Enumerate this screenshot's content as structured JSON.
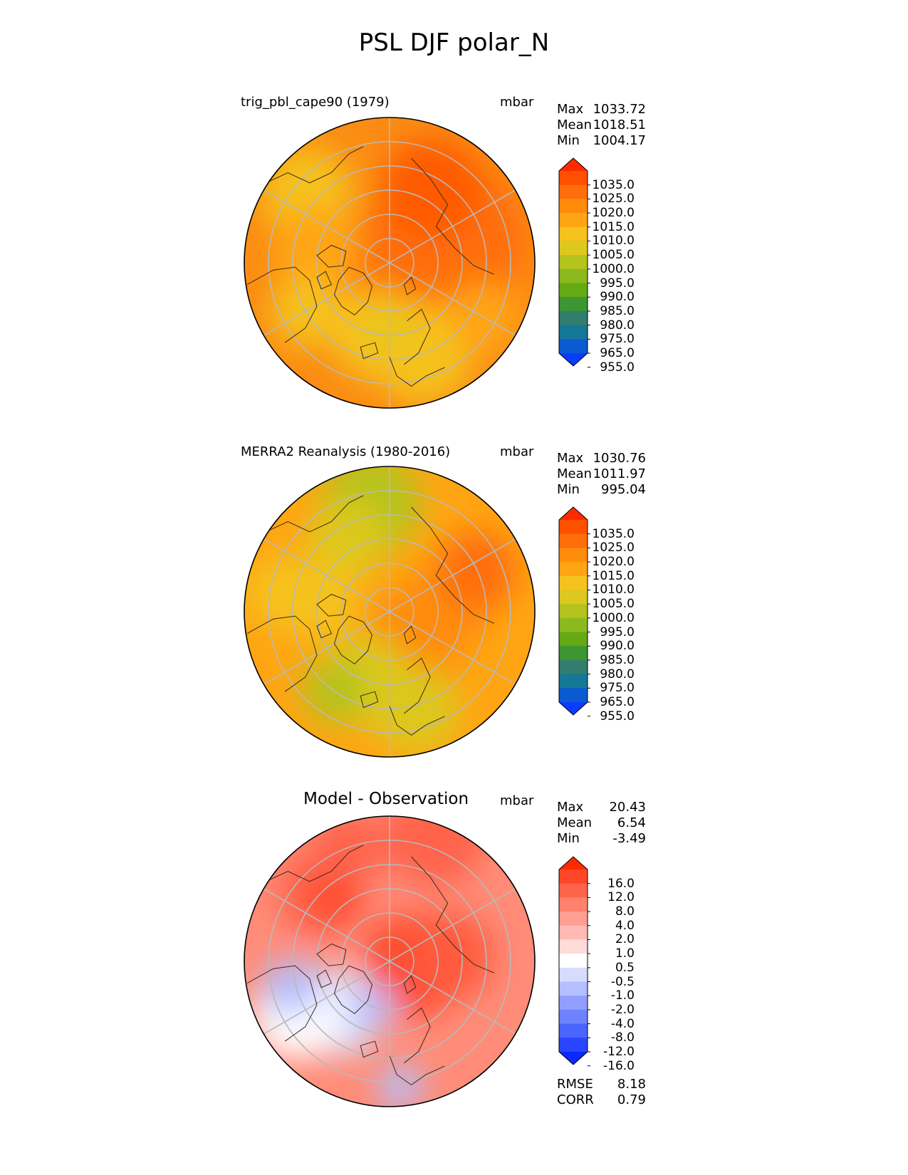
{
  "chart_data": {
    "type": "heatmap",
    "title": "PSL DJF polar_N",
    "panels": [
      {
        "id": "test",
        "title": "trig_pbl_cape90 (1979)",
        "units": "mbar",
        "stats": [
          {
            "label": "Max",
            "value": "1033.72"
          },
          {
            "label": "Mean",
            "value": "1018.51"
          },
          {
            "label": "Min",
            "value": "1004.17"
          }
        ],
        "colorbar": {
          "levels": [
            "1035.0",
            "1025.0",
            "1020.0",
            "1015.0",
            "1010.0",
            "1005.0",
            "1000.0",
            "995.0",
            "990.0",
            "985.0",
            "980.0",
            "975.0",
            "965.0",
            "955.0"
          ],
          "colors": [
            "#ff2a00",
            "#ff5000",
            "#ff6e0a",
            "#ff8c0a",
            "#ffa514",
            "#f5c21e",
            "#dcc81e",
            "#b4c31e",
            "#8cb91e",
            "#64aa14",
            "#3c9632",
            "#327d6e",
            "#147896",
            "#0a5ad2",
            "#0a3cff"
          ]
        },
        "field": {
          "background": "#fb8c14",
          "regions": [
            {
              "lat": 90,
              "lon": 0,
              "r": 0.32,
              "color": "#ff6e0a"
            },
            {
              "lat": 65,
              "lon": 110,
              "r": 0.55,
              "color": "#ff6e0a"
            },
            {
              "lat": 55,
              "lon": 150,
              "r": 0.35,
              "color": "#ff5a00"
            },
            {
              "lat": 45,
              "lon": -130,
              "r": 0.32,
              "color": "#f5c21e"
            },
            {
              "lat": 60,
              "lon": -100,
              "r": 0.3,
              "color": "#ffa514"
            },
            {
              "lat": 50,
              "lon": -60,
              "r": 0.25,
              "color": "#f5c21e"
            },
            {
              "lat": 60,
              "lon": -10,
              "r": 0.32,
              "color": "#f5c21e"
            },
            {
              "lat": 50,
              "lon": 20,
              "r": 0.35,
              "color": "#f5c21e"
            },
            {
              "lat": 62,
              "lon": 0,
              "r": 0.12,
              "color": "#dcc81e"
            },
            {
              "lat": 45,
              "lon": 60,
              "r": 0.25,
              "color": "#ffa514"
            }
          ]
        }
      },
      {
        "id": "reference",
        "title": "MERRA2 Reanalysis (1980-2016)",
        "units": "mbar",
        "stats": [
          {
            "label": "Max",
            "value": "1030.76"
          },
          {
            "label": "Mean",
            "value": "1011.97"
          },
          {
            "label": "Min",
            "value": "995.04"
          }
        ],
        "colorbar": {
          "levels": [
            "1035.0",
            "1025.0",
            "1020.0",
            "1015.0",
            "1010.0",
            "1005.0",
            "1000.0",
            "995.0",
            "990.0",
            "985.0",
            "980.0",
            "975.0",
            "965.0",
            "955.0"
          ],
          "colors": [
            "#ff2a00",
            "#ff5000",
            "#ff6e0a",
            "#ff8c0a",
            "#ffa514",
            "#f5c21e",
            "#dcc81e",
            "#b4c31e",
            "#8cb91e",
            "#64aa14",
            "#3c9632",
            "#327d6e",
            "#147896",
            "#0a5ad2",
            "#0a3cff"
          ]
        },
        "field": {
          "background": "#ffa514",
          "regions": [
            {
              "lat": 75,
              "lon": 45,
              "r": 0.35,
              "color": "#ff8c0a"
            },
            {
              "lat": 65,
              "lon": 100,
              "r": 0.3,
              "color": "#ff8c0a"
            },
            {
              "lat": 50,
              "lon": 115,
              "r": 0.28,
              "color": "#ff6e0a"
            },
            {
              "lat": 45,
              "lon": -170,
              "r": 0.35,
              "color": "#b4c31e"
            },
            {
              "lat": 55,
              "lon": -150,
              "r": 0.28,
              "color": "#dcc81e"
            },
            {
              "lat": 60,
              "lon": -20,
              "r": 0.32,
              "color": "#dcc81e"
            },
            {
              "lat": 50,
              "lon": -35,
              "r": 0.22,
              "color": "#b4c31e"
            },
            {
              "lat": 48,
              "lon": 15,
              "r": 0.3,
              "color": "#dcc81e"
            },
            {
              "lat": 60,
              "lon": -100,
              "r": 0.28,
              "color": "#f5c21e"
            },
            {
              "lat": 45,
              "lon": -100,
              "r": 0.25,
              "color": "#f5c21e"
            }
          ]
        }
      },
      {
        "id": "diff",
        "title": "Model - Observation",
        "units": "mbar",
        "stats": [
          {
            "label": "Max",
            "value": "20.43"
          },
          {
            "label": "Mean",
            "value": "6.54"
          },
          {
            "label": "Min",
            "value": "-3.49"
          }
        ],
        "metrics": [
          {
            "label": "RMSE",
            "value": "8.18"
          },
          {
            "label": "CORR",
            "value": "0.79"
          }
        ],
        "colorbar": {
          "levels": [
            "16.0",
            "12.0",
            "8.0",
            "4.0",
            "2.0",
            "1.0",
            "0.5",
            "-0.5",
            "-1.0",
            "-2.0",
            "-4.0",
            "-8.0",
            "-12.0",
            "-16.0"
          ],
          "colors": [
            "#ff2a00",
            "#ff4628",
            "#ff644b",
            "#ff826e",
            "#ff9e91",
            "#ffbab4",
            "#ffdcd7",
            "#ffffff",
            "#d7dcff",
            "#b4bfff",
            "#919eff",
            "#6e82ff",
            "#4b64ff",
            "#2846ff",
            "#0a28ff"
          ]
        },
        "field": {
          "background": "#ff8c78",
          "regions": [
            {
              "lat": 80,
              "lon": 80,
              "r": 0.35,
              "color": "#ff4628"
            },
            {
              "lat": 65,
              "lon": 95,
              "r": 0.3,
              "color": "#ff5a3c"
            },
            {
              "lat": 50,
              "lon": -135,
              "r": 0.3,
              "color": "#ff644b"
            },
            {
              "lat": 55,
              "lon": -140,
              "r": 0.18,
              "color": "#ff4628"
            },
            {
              "lat": 60,
              "lon": -45,
              "r": 0.3,
              "color": "#dde2ff"
            },
            {
              "lat": 45,
              "lon": -60,
              "r": 0.3,
              "color": "#ffffff"
            },
            {
              "lat": 70,
              "lon": -20,
              "r": 0.15,
              "color": "#b4bfff"
            },
            {
              "lat": 48,
              "lon": -75,
              "r": 0.2,
              "color": "#b4bfff"
            },
            {
              "lat": 38,
              "lon": 5,
              "r": 0.15,
              "color": "#b4bfff"
            },
            {
              "lat": 35,
              "lon": 160,
              "r": 0.35,
              "color": "#ff644b"
            },
            {
              "lat": 40,
              "lon": -160,
              "r": 0.25,
              "color": "#ff644b"
            }
          ]
        }
      }
    ],
    "projection": "north polar stereographic",
    "graticule": {
      "lat_circles": [
        80,
        70,
        60,
        50,
        40,
        30
      ],
      "lon_spokes_deg": [
        0,
        60,
        120,
        180,
        240,
        300
      ]
    }
  }
}
